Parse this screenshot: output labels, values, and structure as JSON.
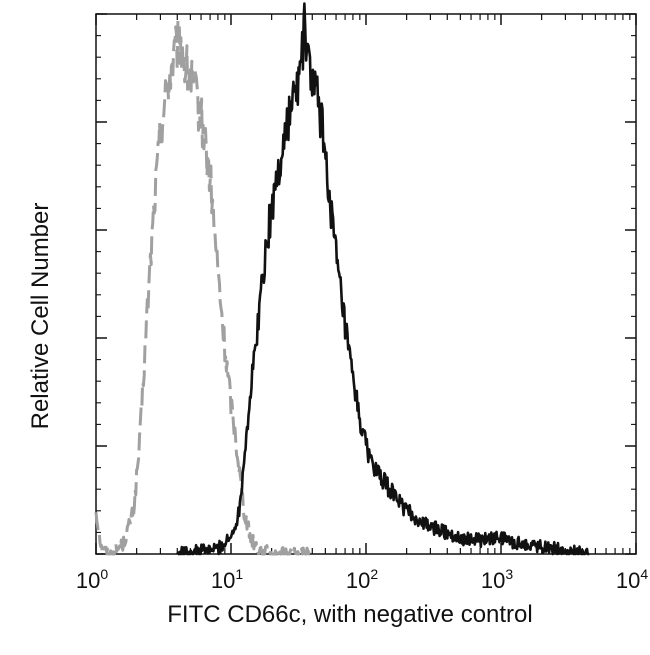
{
  "chart_data": {
    "type": "line",
    "xlabel": "FITC CD66c, with negative control",
    "ylabel": "Relative Cell Number",
    "x_scale": "log",
    "xlim": [
      1,
      10000
    ],
    "ylim": [
      0,
      1
    ],
    "x_ticks": [
      {
        "value": 1,
        "base": "10",
        "exp": "0"
      },
      {
        "value": 10,
        "base": "10",
        "exp": "1"
      },
      {
        "value": 100,
        "base": "10",
        "exp": "2"
      },
      {
        "value": 1000,
        "base": "10",
        "exp": "3"
      },
      {
        "value": 10000,
        "base": "10",
        "exp": "4"
      }
    ],
    "y_ticks_labeled": false,
    "grid": false,
    "legend": false,
    "series": [
      {
        "style": "dashed",
        "color": "#a0a0a0",
        "points": [
          [
            1.0,
            0.08
          ],
          [
            1.1,
            0.01
          ],
          [
            1.3,
            0.0
          ],
          [
            1.6,
            0.02
          ],
          [
            1.9,
            0.08
          ],
          [
            2.1,
            0.2
          ],
          [
            2.4,
            0.45
          ],
          [
            2.7,
            0.65
          ],
          [
            3.0,
            0.78
          ],
          [
            3.4,
            0.87
          ],
          [
            3.8,
            0.92
          ],
          [
            4.2,
            0.95
          ],
          [
            4.6,
            0.9
          ],
          [
            5.0,
            0.88
          ],
          [
            5.6,
            0.84
          ],
          [
            6.3,
            0.78
          ],
          [
            7.1,
            0.68
          ],
          [
            8.0,
            0.52
          ],
          [
            9.0,
            0.38
          ],
          [
            10.0,
            0.28
          ],
          [
            11.0,
            0.2
          ],
          [
            12.5,
            0.08
          ],
          [
            14.0,
            0.03
          ],
          [
            16.0,
            0.01
          ],
          [
            20.0,
            0.0
          ],
          [
            40.0,
            0.0
          ]
        ]
      },
      {
        "style": "solid",
        "color": "#111111",
        "points": [
          [
            4.0,
            0.0
          ],
          [
            8.0,
            0.01
          ],
          [
            10.0,
            0.03
          ],
          [
            11.5,
            0.08
          ],
          [
            12.5,
            0.18
          ],
          [
            14.0,
            0.3
          ],
          [
            16.0,
            0.44
          ],
          [
            18.0,
            0.56
          ],
          [
            20.0,
            0.64
          ],
          [
            23.0,
            0.72
          ],
          [
            26.0,
            0.8
          ],
          [
            29.0,
            0.84
          ],
          [
            32.0,
            0.88
          ],
          [
            35.0,
            0.97
          ],
          [
            38.0,
            0.9
          ],
          [
            42.0,
            0.86
          ],
          [
            47.0,
            0.8
          ],
          [
            53.0,
            0.68
          ],
          [
            60.0,
            0.55
          ],
          [
            70.0,
            0.42
          ],
          [
            80.0,
            0.32
          ],
          [
            90.0,
            0.25
          ],
          [
            100.0,
            0.2
          ],
          [
            120.0,
            0.15
          ],
          [
            150.0,
            0.12
          ],
          [
            200.0,
            0.08
          ],
          [
            250.0,
            0.06
          ],
          [
            300.0,
            0.05
          ],
          [
            400.0,
            0.04
          ],
          [
            500.0,
            0.03
          ],
          [
            700.0,
            0.025
          ],
          [
            1000.0,
            0.03
          ],
          [
            1300.0,
            0.02
          ],
          [
            2000.0,
            0.015
          ],
          [
            3000.0,
            0.005
          ],
          [
            4500.0,
            0.0
          ]
        ]
      }
    ]
  }
}
